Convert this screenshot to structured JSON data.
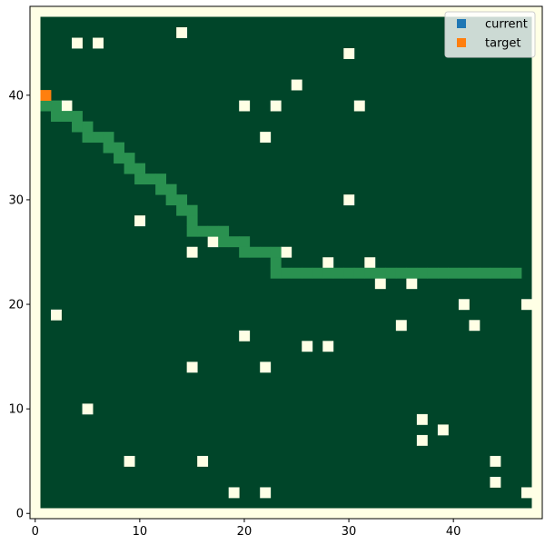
{
  "chart_data": {
    "type": "heatmap",
    "title": "",
    "xlabel": "",
    "ylabel": "",
    "xlim": [
      -0.5,
      48.5
    ],
    "ylim": [
      -0.5,
      48.5
    ],
    "grid_extent": [
      0.5,
      47.5,
      0.5,
      47.5
    ],
    "x_ticks": [
      0,
      10,
      20,
      30,
      40
    ],
    "y_ticks": [
      0,
      10,
      20,
      30,
      40
    ],
    "grid": false,
    "legend_position": "top-right",
    "colors": {
      "background": "#ffffe5",
      "free": "#004529",
      "obstacle": "#ffffe5",
      "path": "#2a9150",
      "current": "#1f77b4",
      "target": "#ff7f0e"
    },
    "legend": [
      {
        "name": "current",
        "color": "#1f77b4"
      },
      {
        "name": "target",
        "color": "#ff7f0e"
      }
    ],
    "obstacles": [
      [
        4,
        45
      ],
      [
        6,
        45
      ],
      [
        14,
        46
      ],
      [
        30,
        44
      ],
      [
        25,
        41
      ],
      [
        3,
        39
      ],
      [
        20,
        39
      ],
      [
        23,
        39
      ],
      [
        31,
        39
      ],
      [
        22,
        36
      ],
      [
        10,
        28
      ],
      [
        30,
        30
      ],
      [
        17,
        26
      ],
      [
        15,
        25
      ],
      [
        24,
        25
      ],
      [
        28,
        24
      ],
      [
        32,
        24
      ],
      [
        33,
        22
      ],
      [
        36,
        22
      ],
      [
        2,
        19
      ],
      [
        41,
        20
      ],
      [
        47,
        20
      ],
      [
        20,
        17
      ],
      [
        35,
        18
      ],
      [
        42,
        18
      ],
      [
        26,
        16
      ],
      [
        28,
        16
      ],
      [
        15,
        14
      ],
      [
        22,
        14
      ],
      [
        5,
        10
      ],
      [
        37,
        9
      ],
      [
        39,
        8
      ],
      [
        37,
        7
      ],
      [
        9,
        5
      ],
      [
        16,
        5
      ],
      [
        44,
        5
      ],
      [
        44,
        3
      ],
      [
        19,
        2
      ],
      [
        22,
        2
      ],
      [
        47,
        2
      ]
    ],
    "path": [
      [
        1,
        39
      ],
      [
        2,
        39
      ],
      [
        2,
        38
      ],
      [
        3,
        38
      ],
      [
        4,
        38
      ],
      [
        4,
        37
      ],
      [
        5,
        37
      ],
      [
        5,
        36
      ],
      [
        6,
        36
      ],
      [
        7,
        36
      ],
      [
        7,
        35
      ],
      [
        8,
        35
      ],
      [
        8,
        34
      ],
      [
        9,
        34
      ],
      [
        9,
        33
      ],
      [
        10,
        33
      ],
      [
        10,
        32
      ],
      [
        11,
        32
      ],
      [
        12,
        32
      ],
      [
        12,
        31
      ],
      [
        13,
        31
      ],
      [
        13,
        30
      ],
      [
        14,
        30
      ],
      [
        14,
        29
      ],
      [
        15,
        29
      ],
      [
        15,
        28
      ],
      [
        15,
        27
      ],
      [
        16,
        27
      ],
      [
        17,
        27
      ],
      [
        18,
        27
      ],
      [
        18,
        26
      ],
      [
        19,
        26
      ],
      [
        20,
        26
      ],
      [
        20,
        25
      ],
      [
        21,
        25
      ],
      [
        22,
        25
      ],
      [
        23,
        25
      ],
      [
        23,
        24
      ],
      [
        23,
        23
      ],
      [
        24,
        23
      ],
      [
        25,
        23
      ],
      [
        26,
        23
      ],
      [
        27,
        23
      ],
      [
        28,
        23
      ],
      [
        29,
        23
      ],
      [
        30,
        23
      ],
      [
        31,
        23
      ],
      [
        32,
        23
      ],
      [
        33,
        23
      ],
      [
        34,
        23
      ],
      [
        35,
        23
      ],
      [
        36,
        23
      ],
      [
        37,
        23
      ],
      [
        38,
        23
      ],
      [
        39,
        23
      ],
      [
        40,
        23
      ],
      [
        41,
        23
      ],
      [
        42,
        23
      ],
      [
        43,
        23
      ],
      [
        44,
        23
      ],
      [
        45,
        23
      ],
      [
        46,
        23
      ]
    ],
    "current": [],
    "target": [
      [
        1,
        40
      ]
    ]
  }
}
